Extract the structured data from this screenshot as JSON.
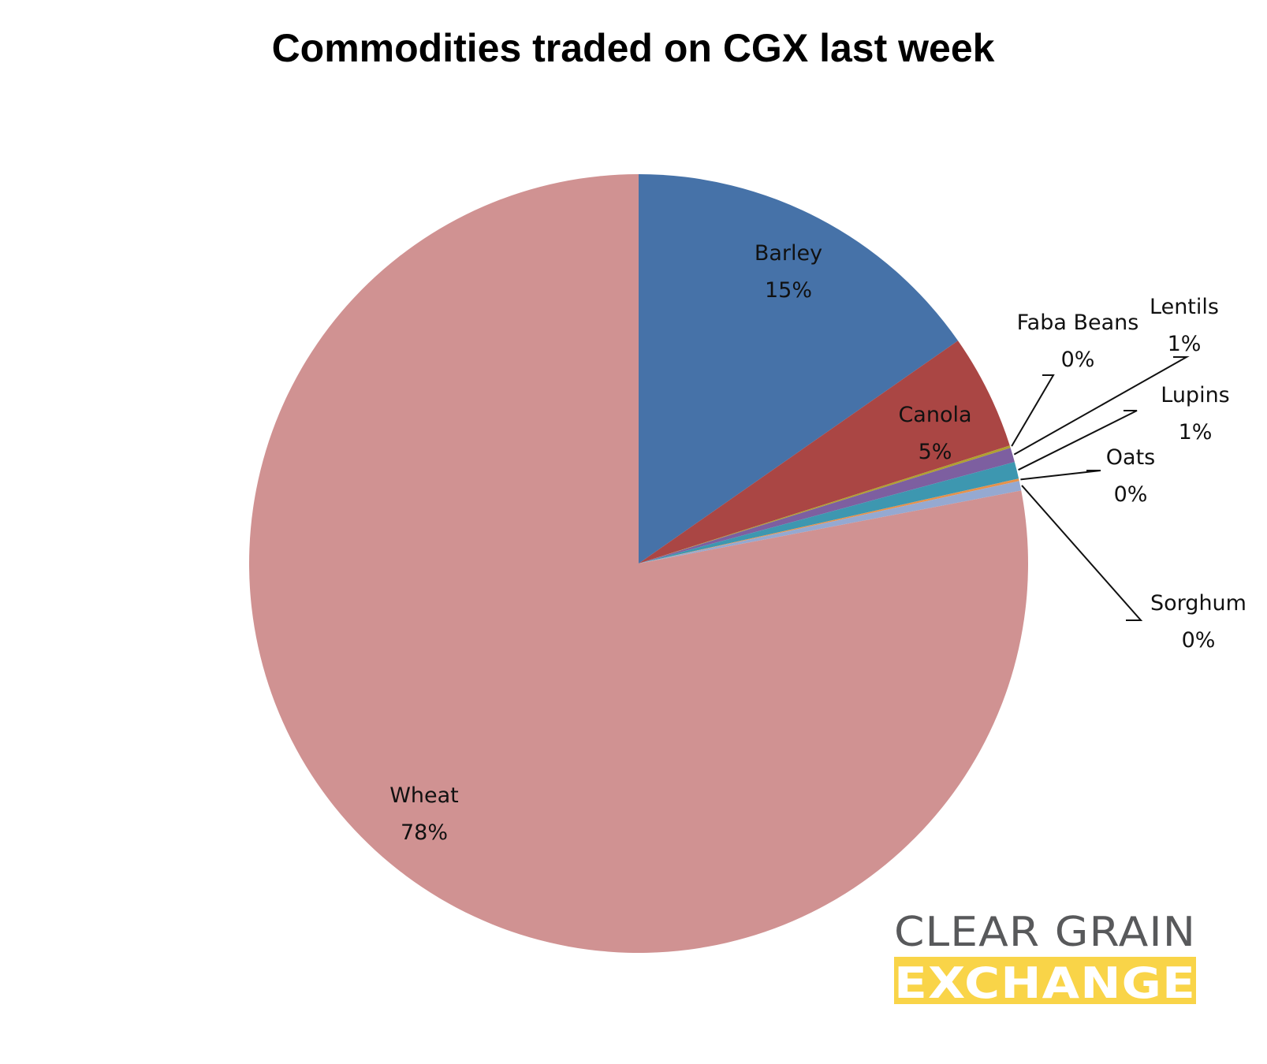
{
  "chart_data": {
    "type": "pie",
    "title": "Commodities traded on CGX last week",
    "slices": [
      {
        "label": "Barley",
        "value": 15.3,
        "display": "15%",
        "color": "#4672A8"
      },
      {
        "label": "Canola",
        "value": 4.8,
        "display": "5%",
        "color": "#AA4644"
      },
      {
        "label": "Faba Beans",
        "value": 0.1,
        "display": "0%",
        "color": "#B0A030"
      },
      {
        "label": "Lentils",
        "value": 0.6,
        "display": "1%",
        "color": "#7D5FA0"
      },
      {
        "label": "Lupins",
        "value": 0.7,
        "display": "1%",
        "color": "#3D97B0"
      },
      {
        "label": "Oats",
        "value": 0.1,
        "display": "0%",
        "color": "#E6914A"
      },
      {
        "label": "Sorghum",
        "value": 0.4,
        "display": "0%",
        "color": "#95A9D1"
      },
      {
        "label": "Wheat",
        "value": 78.0,
        "display": "78%",
        "color": "#D09292"
      }
    ],
    "start_angle": "12 o'clock",
    "direction": "clockwise",
    "legend": "none"
  },
  "logo": {
    "line1": "CLEAR GRAIN",
    "line2": "EXCHANGE",
    "text_color": "#58595B",
    "band_color": "#F9D448"
  }
}
